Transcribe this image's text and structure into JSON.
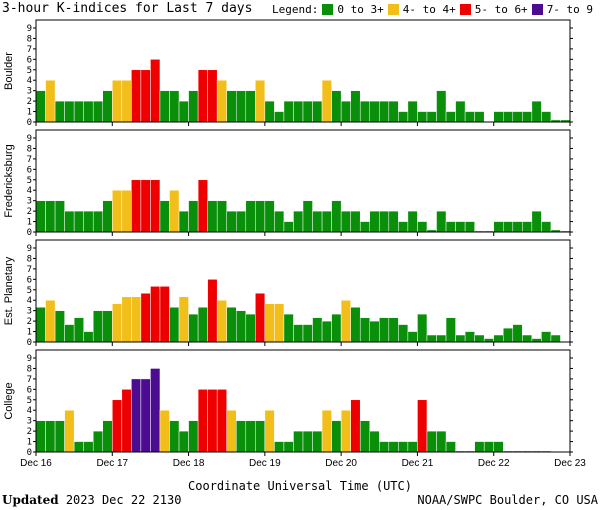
{
  "title": "3-hour K-indices for Last 7 days",
  "legend": {
    "label": "Legend:",
    "items": [
      {
        "label": "0 to 3+",
        "color": "#0a8f0a"
      },
      {
        "label": "4- to 4+",
        "color": "#f2be1a"
      },
      {
        "label": "5- to 6+",
        "color": "#ee0000"
      },
      {
        "label": "7- to 9",
        "color": "#4b0c91"
      }
    ]
  },
  "footer": {
    "updated_label": "Updated",
    "updated_value": "2023 Dec 22 2130",
    "source": "NOAA/SWPC Boulder, CO USA"
  },
  "chart_data": {
    "type": "bar",
    "xlabel": "Coordinate Universal Time (UTC)",
    "x_tick_labels": [
      "Dec 16",
      "Dec 17",
      "Dec 18",
      "Dec 19",
      "Dec 20",
      "Dec 21",
      "Dec 22",
      "Dec 23"
    ],
    "ylim": [
      0,
      9
    ],
    "y_ticks": [
      0,
      1,
      2,
      3,
      4,
      5,
      6,
      7,
      8,
      9
    ],
    "bars_per_day": 8,
    "grid": false,
    "color_scale": [
      {
        "range": "0 to 3+",
        "color": "#0a8f0a"
      },
      {
        "range": "4- to 4+",
        "color": "#f2be1a"
      },
      {
        "range": "5- to 6+",
        "color": "#ee0000"
      },
      {
        "range": "7- to 9",
        "color": "#4b0c91"
      }
    ],
    "panels": [
      {
        "name": "Boulder",
        "values": [
          3,
          4,
          2,
          2,
          2,
          2,
          2,
          3,
          4,
          4,
          5,
          5,
          6,
          3,
          3,
          2,
          3,
          5,
          5,
          4,
          3,
          3,
          3,
          4,
          2,
          1,
          2,
          2,
          2,
          2,
          4,
          3,
          2,
          3,
          2,
          2,
          2,
          2,
          1,
          2,
          1,
          1,
          3,
          1,
          2,
          1,
          1,
          0,
          1,
          1,
          1,
          1,
          2,
          1,
          0.2,
          0.2
        ]
      },
      {
        "name": "Fredericksburg",
        "values": [
          3,
          3,
          3,
          2,
          2,
          2,
          2,
          3,
          4,
          4,
          5,
          5,
          5,
          3,
          4,
          2,
          3,
          5,
          3,
          3,
          2,
          2,
          3,
          3,
          3,
          2,
          1,
          2,
          3,
          2,
          2,
          3,
          2,
          2,
          1,
          2,
          2,
          2,
          1,
          2,
          1,
          0.2,
          2,
          1,
          1,
          1,
          0.1,
          0.1,
          1,
          1,
          1,
          1,
          2,
          1,
          0.2,
          0.1
        ]
      },
      {
        "name": "Est. Planetary",
        "values": [
          3.33,
          4,
          3,
          1.67,
          2.33,
          1,
          3,
          3,
          3.67,
          4.33,
          4.33,
          4.67,
          5.33,
          5.33,
          3.33,
          4.33,
          2.67,
          3.33,
          6,
          4,
          3.33,
          3,
          2.67,
          4.67,
          3.67,
          3.67,
          2.67,
          1.67,
          1.67,
          2.33,
          2,
          2.67,
          4,
          3.33,
          2.33,
          2,
          2.33,
          2.33,
          1.67,
          1,
          2.67,
          0.67,
          0.67,
          2.33,
          0.67,
          1,
          0.67,
          0.33,
          0.67,
          1.33,
          1.67,
          0.67,
          0.33,
          1,
          0.67,
          0
        ]
      },
      {
        "name": "College",
        "values": [
          3,
          3,
          3,
          4,
          1,
          1,
          2,
          3,
          5,
          6,
          7,
          7,
          8,
          4,
          3,
          2,
          3,
          6,
          6,
          6,
          4,
          3,
          3,
          3,
          4,
          1,
          1,
          2,
          2,
          2,
          4,
          3,
          4,
          5,
          3,
          2,
          1,
          1,
          1,
          1,
          5,
          2,
          2,
          1,
          0.1,
          0.1,
          1,
          1,
          1,
          0.1,
          0.1,
          0.1,
          0.1,
          0.1,
          0,
          0
        ]
      }
    ]
  }
}
